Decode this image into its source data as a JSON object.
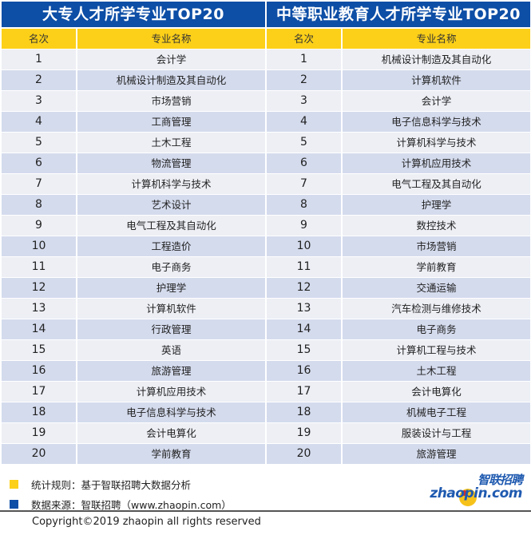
{
  "left_table": {
    "title": "大专人才所学专业TOP20",
    "headers": [
      "名次",
      "专业名称"
    ],
    "rows": [
      {
        "rank": "1",
        "major": "会计学"
      },
      {
        "rank": "2",
        "major": "机械设计制造及其自动化"
      },
      {
        "rank": "3",
        "major": "市场营销"
      },
      {
        "rank": "4",
        "major": "工商管理"
      },
      {
        "rank": "5",
        "major": "土木工程"
      },
      {
        "rank": "6",
        "major": "物流管理"
      },
      {
        "rank": "7",
        "major": "计算机科学与技术"
      },
      {
        "rank": "8",
        "major": "艺术设计"
      },
      {
        "rank": "9",
        "major": "电气工程及其自动化"
      },
      {
        "rank": "10",
        "major": "工程造价"
      },
      {
        "rank": "11",
        "major": "电子商务"
      },
      {
        "rank": "12",
        "major": "护理学"
      },
      {
        "rank": "13",
        "major": "计算机软件"
      },
      {
        "rank": "14",
        "major": "行政管理"
      },
      {
        "rank": "15",
        "major": "英语"
      },
      {
        "rank": "16",
        "major": "旅游管理"
      },
      {
        "rank": "17",
        "major": "计算机应用技术"
      },
      {
        "rank": "18",
        "major": "电子信息科学与技术"
      },
      {
        "rank": "19",
        "major": "会计电算化"
      },
      {
        "rank": "20",
        "major": "学前教育"
      }
    ]
  },
  "right_table": {
    "title": "中等职业教育人才所学专业TOP20",
    "headers": [
      "名次",
      "专业名称"
    ],
    "rows": [
      {
        "rank": "1",
        "major": "机械设计制造及其自动化"
      },
      {
        "rank": "2",
        "major": "计算机软件"
      },
      {
        "rank": "3",
        "major": "会计学"
      },
      {
        "rank": "4",
        "major": "电子信息科学与技术"
      },
      {
        "rank": "5",
        "major": "计算机科学与技术"
      },
      {
        "rank": "6",
        "major": "计算机应用技术"
      },
      {
        "rank": "7",
        "major": "电气工程及其自动化"
      },
      {
        "rank": "8",
        "major": "护理学"
      },
      {
        "rank": "9",
        "major": "数控技术"
      },
      {
        "rank": "10",
        "major": "市场营销"
      },
      {
        "rank": "11",
        "major": "学前教育"
      },
      {
        "rank": "12",
        "major": "交通运输"
      },
      {
        "rank": "13",
        "major": "汽车检测与维修技术"
      },
      {
        "rank": "14",
        "major": "电子商务"
      },
      {
        "rank": "15",
        "major": "计算机工程与技术"
      },
      {
        "rank": "16",
        "major": "土木工程"
      },
      {
        "rank": "17",
        "major": "会计电算化"
      },
      {
        "rank": "18",
        "major": "机械电子工程"
      },
      {
        "rank": "19",
        "major": "服装设计与工程"
      },
      {
        "rank": "20",
        "major": "旅游管理"
      }
    ]
  },
  "footer": {
    "legend": [
      {
        "color": "#fcd018",
        "text": "统计规则：基于智联招聘大数据分析"
      },
      {
        "color": "#0d4ea6",
        "text": "数据来源：智联招聘（www.zhaopin.com）"
      }
    ],
    "copyright": "Copyright©2019 zhaopin all rights reserved",
    "logo": {
      "cn": "智联招聘",
      "en": "zhaopin.com"
    }
  },
  "colors": {
    "title_bg": "#0d4ea6",
    "header_bg": "#fcd018",
    "row_odd": "#edeff5",
    "row_even": "#d4dbed"
  }
}
